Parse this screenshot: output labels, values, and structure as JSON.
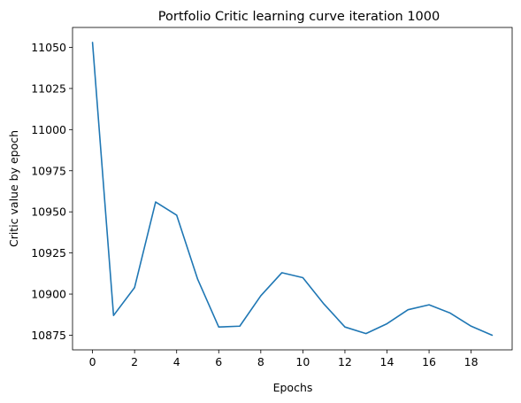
{
  "chart_data": {
    "type": "line",
    "title": "Portfolio Critic learning curve iteration 1000",
    "xlabel": "Epochs",
    "ylabel": "Critic value by epoch",
    "xlim": [
      -0.95,
      19.95
    ],
    "ylim": [
      10866.1,
      11062.1
    ],
    "xticks": [
      0,
      2,
      4,
      6,
      8,
      10,
      12,
      14,
      16,
      18
    ],
    "yticks": [
      10875,
      10900,
      10925,
      10950,
      10975,
      11000,
      11025,
      11050
    ],
    "grid": false,
    "legend": "none",
    "series_color": "#1f77b4",
    "series": [
      {
        "x": [
          0,
          1,
          2,
          3,
          4,
          5,
          6,
          7,
          8,
          9,
          10,
          11,
          12,
          13,
          14,
          15,
          16,
          17,
          18,
          19
        ],
        "values": [
          11053,
          10887,
          10904,
          10956,
          10948,
          10909,
          10880,
          10880.5,
          10899,
          10913,
          10910,
          10894,
          10880,
          10876,
          10882,
          10890.5,
          10893.5,
          10888.5,
          10880.5,
          10875
        ]
      }
    ]
  }
}
